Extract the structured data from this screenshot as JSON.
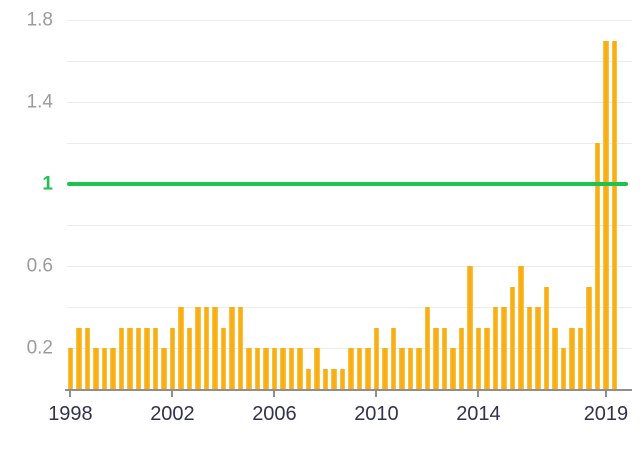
{
  "chart_data": {
    "type": "bar",
    "title": "",
    "xlabel": "",
    "ylabel": "",
    "x_description": "Three bars per year from 1998 through mid-2019 (65 bars total)",
    "values": [
      0.2,
      0.3,
      0.3,
      0.2,
      0.2,
      0.2,
      0.3,
      0.3,
      0.3,
      0.3,
      0.3,
      0.2,
      0.3,
      0.4,
      0.3,
      0.4,
      0.4,
      0.4,
      0.3,
      0.4,
      0.4,
      0.2,
      0.2,
      0.2,
      0.2,
      0.2,
      0.2,
      0.2,
      0.1,
      0.2,
      0.1,
      0.1,
      0.1,
      0.2,
      0.2,
      0.2,
      0.3,
      0.2,
      0.3,
      0.2,
      0.2,
      0.2,
      0.4,
      0.3,
      0.3,
      0.2,
      0.3,
      0.6,
      0.3,
      0.3,
      0.4,
      0.4,
      0.5,
      0.6,
      0.4,
      0.4,
      0.5,
      0.3,
      0.2,
      0.3,
      0.3,
      0.5,
      1.2,
      1.7,
      1.7
    ],
    "x_ticks": [
      {
        "index": 0,
        "label": "1998"
      },
      {
        "index": 12,
        "label": "2002"
      },
      {
        "index": 24,
        "label": "2006"
      },
      {
        "index": 36,
        "label": "2010"
      },
      {
        "index": 48,
        "label": "2014"
      },
      {
        "index": 63,
        "label": "2019"
      }
    ],
    "y_ticks": [
      {
        "value": 1.8,
        "label": "1.8",
        "highlight": false
      },
      {
        "value": 1.4,
        "label": "1.4",
        "highlight": false
      },
      {
        "value": 1.0,
        "label": "1",
        "highlight": true
      },
      {
        "value": 0.6,
        "label": "0.6",
        "highlight": false
      },
      {
        "value": 0.2,
        "label": "0.2",
        "highlight": false
      }
    ],
    "ylim": [
      0,
      1.8
    ],
    "y_gridline_step": 0.2,
    "grid": true,
    "legend": false,
    "reference_line": {
      "value": 1,
      "label": "1"
    }
  },
  "colors": {
    "bar_core": "#f8ad15",
    "bar_edge": "#fbc84e",
    "reference_green": "#1ec34e",
    "gridline": "#ebebeb",
    "axis": "#8e8e93",
    "y_label": "#9b9b9b",
    "x_label": "#32324e",
    "background": "#ffffff"
  }
}
